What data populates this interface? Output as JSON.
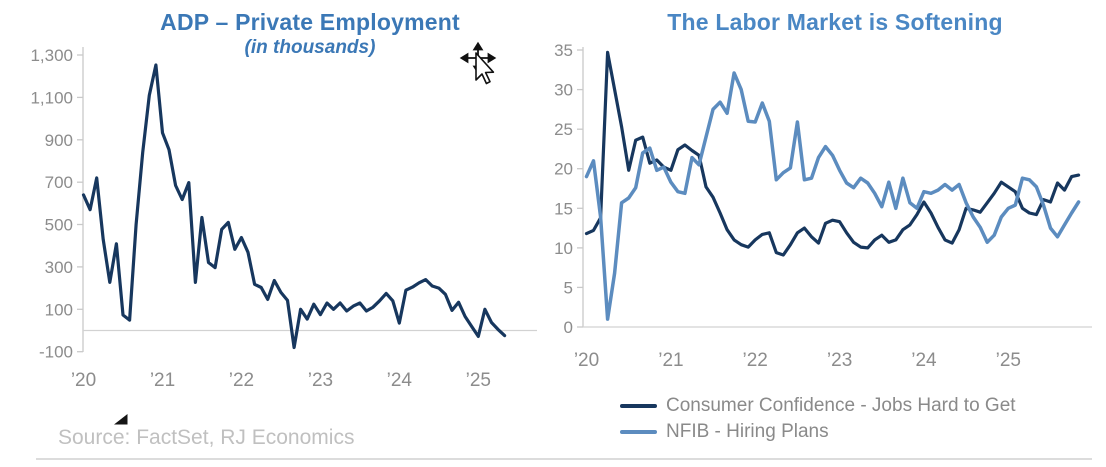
{
  "source_note": "Source: FactSet, RJ Economics",
  "colors": {
    "axis": "#C9C9C9",
    "gridline": "#D2D2D2",
    "tick_label": "#8C8C8C",
    "legend_text": "#8A8A8A",
    "source_text": "#C0C0C0",
    "divider": "#DCDCDC",
    "navy": "#17375E",
    "steel_blue": "#5C8CBF",
    "left_title": "#3B78B6",
    "right_title": "#4A87C4"
  },
  "chart_data": [
    {
      "type": "line",
      "title": "ADP – Private Employment",
      "subtitle": "(in thousands)",
      "title_color": "#3B78B6",
      "x_tick_labels": [
        "’20",
        "’21",
        "’22",
        "’23",
        "’24",
        "’25"
      ],
      "x_unit": "monthly",
      "ylim": [
        -100,
        1300
      ],
      "y_ticks": [
        1300,
        1100,
        900,
        700,
        500,
        300,
        100,
        -100
      ],
      "y_tick_labels": [
        "1,300",
        "1,100",
        "900",
        "700",
        "500",
        "300",
        "100",
        "-100"
      ],
      "gridline_value": 0,
      "grid": "zero-line-only",
      "legend_position": "none",
      "series": [
        {
          "name": "ADP – Private Employment",
          "color": "#17375E",
          "values": [
            640,
            570,
            720,
            430,
            227,
            409,
            73,
            49,
            500,
            840,
            1110,
            1253,
            933,
            853,
            684,
            618,
            698,
            227,
            533,
            321,
            297,
            477,
            510,
            383,
            439,
            369,
            218,
            203,
            147,
            236,
            180,
            142,
            -80,
            100,
            54,
            124,
            75,
            130,
            100,
            130,
            92,
            115,
            130,
            92,
            110,
            140,
            175,
            140,
            35,
            190,
            205,
            225,
            240,
            210,
            200,
            171,
            95,
            133,
            66,
            19,
            -28,
            100,
            38,
            5,
            -24
          ]
        }
      ]
    },
    {
      "type": "line",
      "title": "The Labor Market is Softening",
      "subtitle": "",
      "title_color": "#4A87C4",
      "x_tick_labels": [
        "’20",
        "’21",
        "’22",
        "’23",
        "’24",
        "’25"
      ],
      "x_unit": "monthly",
      "ylim": [
        0,
        35
      ],
      "y_ticks": [
        35,
        30,
        25,
        20,
        15,
        10,
        5,
        0
      ],
      "y_tick_labels": [
        "35",
        "30",
        "25",
        "20",
        "15",
        "10",
        "5",
        "0"
      ],
      "gridline_value": 0,
      "grid": "baseline-only",
      "legend_position": "bottom",
      "series": [
        {
          "name": "Consumer Confidence - Jobs Hard to Get",
          "color": "#17375E",
          "values": [
            11.8,
            12.2,
            13.8,
            34.7,
            30.0,
            25.3,
            19.8,
            23.6,
            24.0,
            20.7,
            21.1,
            20.2,
            19.8,
            22.4,
            23.0,
            22.3,
            21.7,
            17.7,
            16.4,
            14.4,
            12.3,
            11.0,
            10.4,
            10.1,
            11.0,
            11.7,
            11.9,
            9.4,
            9.1,
            10.4,
            11.9,
            12.5,
            11.4,
            10.6,
            13.1,
            13.5,
            13.3,
            11.9,
            10.7,
            10.1,
            10.0,
            11.0,
            11.6,
            10.7,
            11.0,
            12.3,
            12.9,
            14.2,
            15.8,
            14.4,
            12.6,
            11.0,
            10.6,
            12.3,
            15.0,
            14.8,
            14.5,
            15.7,
            16.9,
            18.3,
            17.7,
            17.1,
            15.0,
            14.4,
            14.2,
            16.1,
            15.8,
            18.2,
            17.3,
            19.0,
            19.2
          ]
        },
        {
          "name": "NFIB - Hiring Plans",
          "color": "#5C8CBF",
          "values": [
            19.0,
            21.0,
            13.9,
            1.0,
            6.8,
            15.7,
            16.3,
            17.6,
            22.0,
            22.6,
            19.8,
            20.2,
            18.3,
            17.1,
            16.9,
            21.4,
            20.5,
            24.0,
            27.5,
            28.4,
            27.0,
            32.1,
            30.0,
            26.0,
            25.9,
            28.3,
            26.0,
            18.6,
            19.5,
            20.1,
            25.9,
            18.6,
            18.8,
            21.4,
            22.8,
            21.7,
            19.8,
            18.2,
            17.6,
            18.8,
            18.2,
            16.9,
            15.2,
            18.3,
            15.0,
            18.8,
            15.7,
            15.0,
            17.1,
            16.9,
            17.3,
            18.0,
            17.3,
            18.0,
            15.7,
            13.9,
            12.6,
            10.7,
            11.6,
            13.9,
            15.0,
            15.4,
            18.8,
            18.6,
            17.7,
            15.4,
            12.5,
            11.4,
            12.9,
            14.4,
            15.8
          ]
        }
      ]
    }
  ]
}
